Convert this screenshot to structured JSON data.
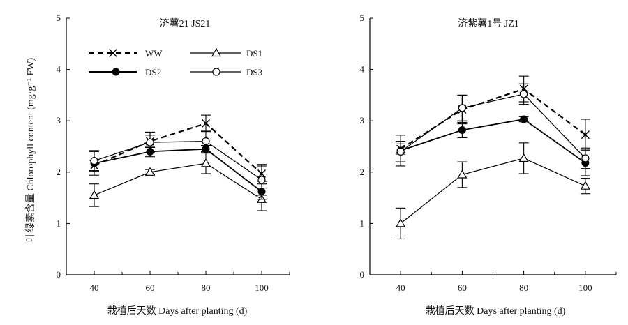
{
  "chart_data": [
    {
      "type": "line",
      "title": "济薯21 JS21",
      "xlabel": "栽植后天数 Days after planting (d)",
      "ylabel": "叶绿素含量 Chlorophyll content (mg·g⁻¹ FW)",
      "x": [
        40,
        60,
        80,
        100
      ],
      "x_ticks": [
        "40",
        "60",
        "80",
        "100"
      ],
      "xlim": [
        30,
        110
      ],
      "ylim": [
        0,
        5
      ],
      "y_ticks": [
        "0",
        "1",
        "2",
        "3",
        "4",
        "5"
      ],
      "legend_position": "top-left",
      "series": [
        {
          "name": "WW",
          "marker": "x",
          "dashed": true,
          "values": [
            2.13,
            2.6,
            2.95,
            1.97
          ],
          "errors": [
            0.1,
            0.12,
            0.16,
            0.15
          ]
        },
        {
          "name": "DS1",
          "marker": "triangle-open",
          "dashed": false,
          "values": [
            1.55,
            2.0,
            2.17,
            1.47
          ],
          "errors": [
            0.22,
            0.05,
            0.2,
            0.22
          ]
        },
        {
          "name": "DS2",
          "marker": "circle-filled",
          "dashed": false,
          "values": [
            2.17,
            2.4,
            2.45,
            1.62
          ],
          "errors": [
            0.23,
            0.1,
            0.07,
            0.15
          ]
        },
        {
          "name": "DS3",
          "marker": "circle-open",
          "dashed": false,
          "values": [
            2.22,
            2.58,
            2.6,
            1.85
          ],
          "errors": [
            0.2,
            0.2,
            0.2,
            0.3
          ]
        }
      ]
    },
    {
      "type": "line",
      "title": "济紫薯1号 JZ1",
      "xlabel": "栽植后天数 Days after planting (d)",
      "ylabel": "",
      "x": [
        40,
        60,
        80,
        100
      ],
      "x_ticks": [
        "40",
        "60",
        "80",
        "100"
      ],
      "xlim": [
        30,
        110
      ],
      "ylim": [
        0,
        5
      ],
      "y_ticks": [
        "0",
        "1",
        "2",
        "3",
        "4",
        "5"
      ],
      "series": [
        {
          "name": "WW",
          "marker": "x",
          "dashed": true,
          "values": [
            2.45,
            3.22,
            3.62,
            2.73
          ],
          "errors": [
            0.1,
            0.28,
            0.25,
            0.3
          ]
        },
        {
          "name": "DS1",
          "marker": "triangle-open",
          "dashed": false,
          "values": [
            1.0,
            1.95,
            2.27,
            1.73
          ],
          "errors": [
            0.3,
            0.25,
            0.3,
            0.15
          ]
        },
        {
          "name": "DS2",
          "marker": "circle-filled",
          "dashed": false,
          "values": [
            2.42,
            2.82,
            3.03,
            2.18
          ],
          "errors": [
            0.3,
            0.15,
            0.05,
            0.25
          ]
        },
        {
          "name": "DS3",
          "marker": "circle-open",
          "dashed": false,
          "values": [
            2.4,
            3.25,
            3.52,
            2.27
          ],
          "errors": [
            0.2,
            0.25,
            0.2,
            0.2
          ]
        }
      ]
    }
  ]
}
